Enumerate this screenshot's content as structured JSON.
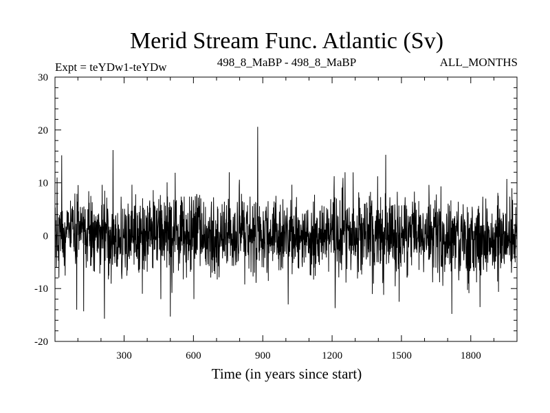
{
  "chart_data": {
    "type": "line",
    "title": "Merid Stream Func. Atlantic (Sv)",
    "subtitle_left": "Expt = teYDw1-teYDw",
    "subtitle_center": "498_8_MaBP - 498_8_MaBP",
    "subtitle_right": "ALL_MONTHS",
    "xlabel": "Time (in years since start)",
    "ylabel": "",
    "xlim": [
      1,
      2000
    ],
    "ylim": [
      -20,
      30
    ],
    "x_ticks": [
      300,
      600,
      900,
      1200,
      1500,
      1800
    ],
    "x_tick_labels": [
      "300",
      "600",
      "900",
      "1200",
      "1500",
      "1800"
    ],
    "y_ticks": [
      -20,
      -10,
      0,
      10,
      20,
      30
    ],
    "y_tick_labels": [
      "-20",
      "-10",
      "0",
      "10",
      "20",
      "30"
    ],
    "grid": false,
    "colors": {
      "line": "#000000",
      "axis": "#000000",
      "background": "#ffffff"
    },
    "series": [
      {
        "n_points": 2000,
        "x_start": 1,
        "x_step": 1,
        "typical_range": [
          -8,
          8
        ],
        "notable_points": [
          {
            "x": 878,
            "y": 20.6
          },
          {
            "x": 252,
            "y": 16.2
          },
          {
            "x": 1432,
            "y": 15.3
          },
          {
            "x": 30,
            "y": 15.2
          },
          {
            "x": 10,
            "y": 11.0
          },
          {
            "x": 215,
            "y": -15.7
          },
          {
            "x": 500,
            "y": -15.3
          },
          {
            "x": 1718,
            "y": -14.8
          },
          {
            "x": 95,
            "y": -14.0
          },
          {
            "x": 125,
            "y": -14.3
          },
          {
            "x": 1213,
            "y": -13.7
          },
          {
            "x": 1840,
            "y": -13.5
          },
          {
            "x": 1490,
            "y": -12.5
          },
          {
            "x": 1010,
            "y": -13.0
          }
        ]
      }
    ]
  }
}
